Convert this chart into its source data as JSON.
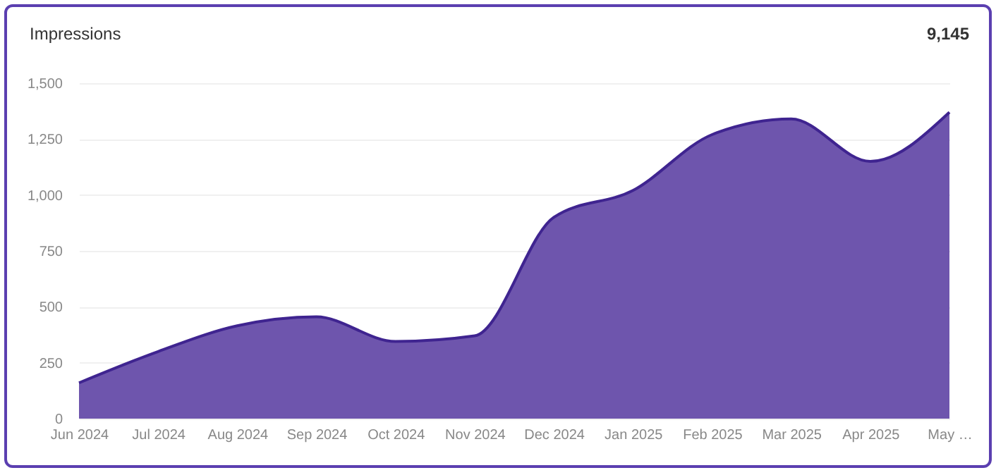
{
  "chart_data": {
    "type": "area",
    "title": "Impressions",
    "annotations": [
      "9,145"
    ],
    "categories": [
      "Jun 2024",
      "Jul 2024",
      "Aug 2024",
      "Sep 2024",
      "Oct 2024",
      "Nov 2024",
      "Dec 2024",
      "Jan 2025",
      "Feb 2025",
      "Mar 2025",
      "Apr 2025",
      "May …"
    ],
    "series": [
      {
        "color": "#6e55ad",
        "values": [
          160,
          300,
          415,
          455,
          345,
          370,
          900,
          1020,
          1270,
          1340,
          1150,
          1370
        ]
      }
    ],
    "ylim": [
      0,
      1500
    ],
    "yticks": [
      {
        "value": 0,
        "label": "0"
      },
      {
        "value": 250,
        "label": "250"
      },
      {
        "value": 500,
        "label": "500"
      },
      {
        "value": 750,
        "label": "750"
      },
      {
        "value": 1000,
        "label": "1,000"
      },
      {
        "value": 1250,
        "label": "1,250"
      },
      {
        "value": 1500,
        "label": "1,500"
      }
    ],
    "grid": "y",
    "legend": false
  }
}
